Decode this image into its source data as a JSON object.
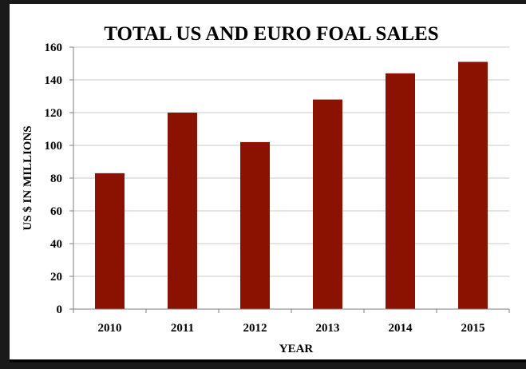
{
  "chart_data": {
    "type": "bar",
    "title": "TOTAL US AND EURO FOAL SALES",
    "xlabel": "YEAR",
    "ylabel": "US $ IN MILLIONS",
    "categories": [
      "2010",
      "2011",
      "2012",
      "2013",
      "2014",
      "2015"
    ],
    "values": [
      83,
      120,
      102,
      128,
      144,
      151
    ],
    "ylim": [
      0,
      160
    ],
    "yticks": [
      "0",
      "20",
      "40",
      "60",
      "80",
      "100",
      "120",
      "140",
      "160"
    ],
    "grid": true,
    "legend": "none",
    "bar_color": "#8b1100",
    "grid_color": "#c8c8c8"
  }
}
